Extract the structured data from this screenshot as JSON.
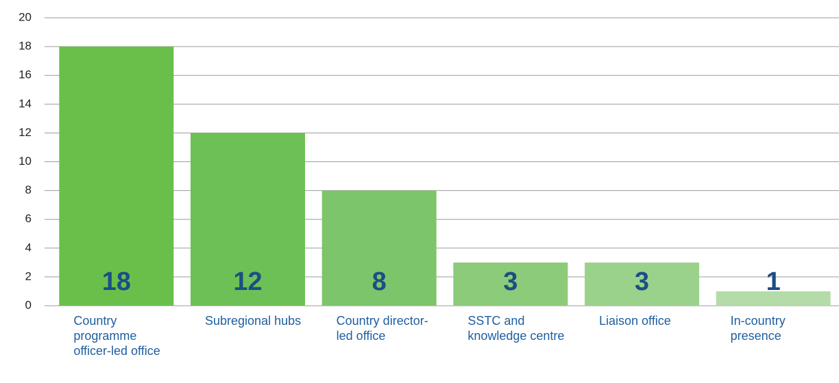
{
  "chart_data": {
    "type": "bar",
    "categories": [
      "Country programme officer-led office",
      "Subregional hubs",
      "Country director-led office",
      "SSTC and knowledge centre",
      "Liaison office",
      "In-country presence"
    ],
    "values": [
      18,
      12,
      8,
      3,
      3,
      1
    ],
    "colors": [
      "#6abf4b",
      "#6dc055",
      "#7cc56a",
      "#8bcb79",
      "#9bd28b",
      "#b4dca8"
    ],
    "ylim": [
      0,
      20
    ],
    "yticks": [
      0,
      2,
      4,
      6,
      8,
      10,
      12,
      14,
      16,
      18,
      20
    ],
    "grid": true
  }
}
